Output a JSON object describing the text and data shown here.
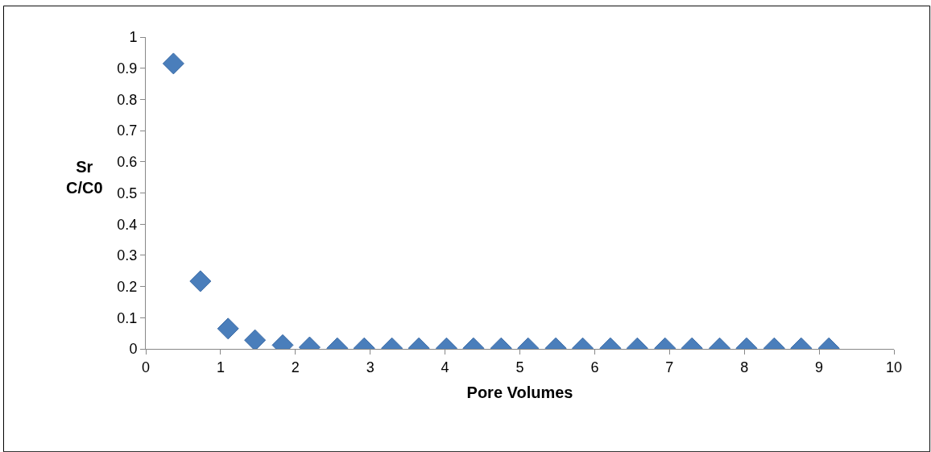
{
  "chart_data": {
    "type": "scatter",
    "xlabel": "Pore Volumes",
    "ylabel": "Sr\nC/C0",
    "x": [
      0.37,
      0.73,
      1.1,
      1.46,
      1.83,
      2.19,
      2.56,
      2.92,
      3.29,
      3.65,
      4.02,
      4.38,
      4.75,
      5.11,
      5.48,
      5.84,
      6.21,
      6.57,
      6.94,
      7.3,
      7.67,
      8.03,
      8.4,
      8.76,
      9.13
    ],
    "values": [
      0.915,
      0.217,
      0.065,
      0.028,
      0.012,
      0.005,
      0.002,
      0.002,
      0.002,
      0.002,
      0.002,
      0.002,
      0.002,
      0.002,
      0.002,
      0.002,
      0.002,
      0.002,
      0.002,
      0.002,
      0.002,
      0.002,
      0.002,
      0.002,
      0.002
    ],
    "color": "#4a7ebb",
    "marker": "diamond",
    "xlim": [
      0,
      10
    ],
    "xticks": [
      0,
      1,
      2,
      3,
      4,
      5,
      6,
      7,
      8,
      9,
      10
    ],
    "ylim": [
      0,
      1
    ],
    "yticks": [
      0,
      0.1,
      0.2,
      0.3,
      0.4,
      0.5,
      0.6,
      0.7,
      0.8,
      0.9,
      1
    ]
  }
}
